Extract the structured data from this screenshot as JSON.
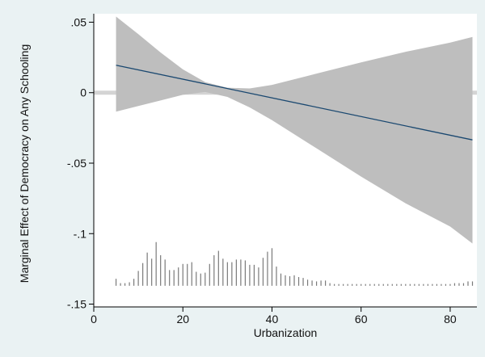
{
  "chart_data": {
    "type": "line",
    "title": "",
    "xlabel": "Urbanization",
    "ylabel": "Marginal Effect of Democracy on Any Schooling",
    "xlim": [
      0,
      86
    ],
    "ylim": [
      -0.152,
      0.056
    ],
    "x_ticks": [
      {
        "value": 0,
        "label": "0"
      },
      {
        "value": 20,
        "label": "20"
      },
      {
        "value": 40,
        "label": "40"
      },
      {
        "value": 60,
        "label": "60"
      },
      {
        "value": 80,
        "label": "80"
      }
    ],
    "y_ticks": [
      {
        "value": 0.05,
        "label": ".05"
      },
      {
        "value": 0,
        "label": "0"
      },
      {
        "value": -0.05,
        "label": "-.05"
      },
      {
        "value": -0.1,
        "label": "-.1"
      },
      {
        "value": -0.15,
        "label": "-.15"
      }
    ],
    "grid": false,
    "zero_reference_line": 0,
    "series": [
      {
        "x": [
          5,
          85
        ],
        "y": [
          0.0195,
          -0.0335
        ]
      }
    ],
    "confidence_band": {
      "x": [
        5,
        10,
        15,
        20,
        25,
        30,
        35,
        40,
        50,
        60,
        70,
        80,
        85
      ],
      "upper": [
        0.054,
        0.0415,
        0.0285,
        0.0165,
        0.0075,
        0.0035,
        0.003,
        0.0055,
        0.0135,
        0.0215,
        0.029,
        0.0355,
        0.0395
      ],
      "lower": [
        -0.0135,
        -0.0095,
        -0.0055,
        -0.0015,
        0.0005,
        -0.003,
        -0.0105,
        -0.0195,
        -0.0395,
        -0.0595,
        -0.0785,
        -0.095,
        -0.107
      ]
    },
    "histogram": {
      "baseline": -0.137,
      "scale_max": -0.106,
      "x": [
        5,
        6,
        7,
        8,
        9,
        10,
        11,
        12,
        13,
        14,
        15,
        16,
        17,
        18,
        19,
        20,
        21,
        22,
        23,
        24,
        25,
        26,
        27,
        28,
        29,
        30,
        31,
        32,
        33,
        34,
        35,
        36,
        37,
        38,
        39,
        40,
        41,
        42,
        43,
        44,
        45,
        46,
        47,
        48,
        49,
        50,
        51,
        52,
        53,
        54,
        55,
        56,
        57,
        58,
        59,
        60,
        61,
        62,
        63,
        64,
        65,
        66,
        67,
        68,
        69,
        70,
        71,
        72,
        73,
        74,
        75,
        76,
        77,
        78,
        79,
        80,
        81,
        82,
        83,
        84,
        85
      ],
      "heights": [
        0.16,
        0.06,
        0.06,
        0.08,
        0.16,
        0.34,
        0.52,
        0.76,
        0.62,
        1.0,
        0.7,
        0.6,
        0.36,
        0.36,
        0.42,
        0.5,
        0.5,
        0.54,
        0.32,
        0.28,
        0.3,
        0.5,
        0.7,
        0.8,
        0.62,
        0.54,
        0.54,
        0.6,
        0.6,
        0.58,
        0.48,
        0.48,
        0.42,
        0.64,
        0.78,
        0.86,
        0.44,
        0.28,
        0.24,
        0.22,
        0.24,
        0.2,
        0.18,
        0.14,
        0.12,
        0.1,
        0.12,
        0.12,
        0.06,
        0.04,
        0.04,
        0.04,
        0.04,
        0.04,
        0.04,
        0.04,
        0.04,
        0.04,
        0.04,
        0.04,
        0.04,
        0.04,
        0.04,
        0.04,
        0.04,
        0.04,
        0.04,
        0.04,
        0.04,
        0.04,
        0.04,
        0.04,
        0.04,
        0.04,
        0.04,
        0.04,
        0.06,
        0.06,
        0.06,
        0.1,
        0.1
      ]
    },
    "colors": {
      "background": "#eaf2f3",
      "plot_background": "#ffffff",
      "band": "#bebebe",
      "line": "#1a4870",
      "zero_line": "#d4d4d4",
      "histogram": "#7a7a7a",
      "axis": "#000000"
    }
  }
}
